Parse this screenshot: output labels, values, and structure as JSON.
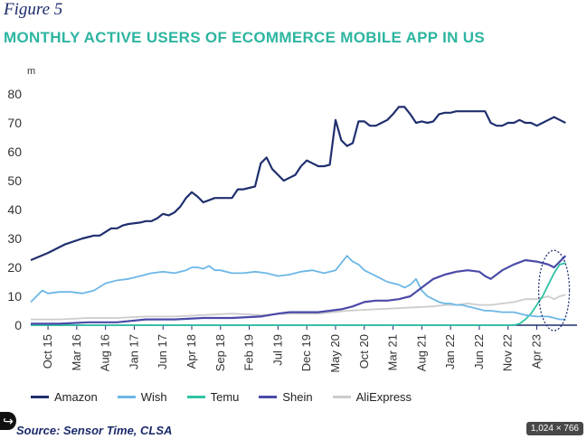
{
  "figure_label": "Figure 5",
  "title": "MONTHLY ACTIVE USERS OF ECOMMERCE MOBILE APP IN US",
  "source": "Source: Sensor Time, CLSA",
  "dims_badge": "1,024 × 766",
  "colors": {
    "Amazon": "#1f2f6e",
    "Wish": "#6cb7e6",
    "Temu": "#2ec4a4",
    "Shein": "#4a4aa8",
    "AliExpress": "#cccccc"
  },
  "chart_data": {
    "type": "line",
    "title": "MONTHLY ACTIVE USERS OF ECOMMERCE MOBILE APP IN US",
    "unit_label": "m",
    "xlabel": "",
    "ylabel": "m",
    "ylim": [
      0,
      80
    ],
    "yticks": [
      0,
      10,
      20,
      30,
      40,
      50,
      60,
      70,
      80
    ],
    "x_range": [
      0,
      95
    ],
    "x_ticks": [
      {
        "x": 3,
        "label": "Oct 15"
      },
      {
        "x": 8,
        "label": "Mar 16"
      },
      {
        "x": 13,
        "label": "Aug 16"
      },
      {
        "x": 18,
        "label": "Jan 17"
      },
      {
        "x": 23,
        "label": "Jun 17"
      },
      {
        "x": 28,
        "label": "Apr 18"
      },
      {
        "x": 33,
        "label": "Sep 18"
      },
      {
        "x": 38,
        "label": "Feb 19"
      },
      {
        "x": 43,
        "label": "Jul 19"
      },
      {
        "x": 48,
        "label": "Dec 19"
      },
      {
        "x": 53,
        "label": "May 20"
      },
      {
        "x": 58,
        "label": "Oct 20"
      },
      {
        "x": 63,
        "label": "Mar 21"
      },
      {
        "x": 68,
        "label": "Aug 21"
      },
      {
        "x": 73,
        "label": "Jan 22"
      },
      {
        "x": 78,
        "label": "Jun 22"
      },
      {
        "x": 83,
        "label": "Nov 22"
      },
      {
        "x": 88,
        "label": "Apr 23"
      }
    ],
    "grid": false,
    "legend_position": "bottom",
    "annotation": "dashed-ellipse-highlight",
    "series": [
      {
        "name": "Amazon",
        "x": [
          0,
          3,
          6,
          9,
          11,
          12,
          14,
          15,
          16,
          17,
          19,
          20,
          21,
          22,
          23,
          24,
          25,
          26,
          27,
          28,
          29,
          30,
          32,
          33,
          34,
          35,
          36,
          37,
          38,
          39,
          40,
          41,
          42,
          43,
          44,
          45,
          46,
          47,
          48,
          49,
          50,
          51,
          52,
          53,
          54,
          55,
          56,
          57,
          58,
          59,
          60,
          61,
          62,
          63,
          64,
          65,
          66,
          67,
          68,
          69,
          70,
          71,
          72,
          73,
          74,
          75,
          76,
          77,
          78,
          79,
          80,
          81,
          82,
          83,
          84,
          85,
          86,
          87,
          88,
          89,
          90,
          91,
          92,
          93
        ],
        "y": [
          22.5,
          25,
          28,
          30,
          31,
          31,
          33.5,
          33.5,
          34.5,
          35,
          35.5,
          36,
          36,
          37,
          38.5,
          38,
          39,
          41,
          44,
          46,
          44.5,
          42.5,
          44,
          44,
          44,
          44,
          47,
          47,
          47.5,
          48,
          56,
          58,
          54,
          52,
          50,
          51,
          52,
          55,
          57,
          56,
          55,
          55,
          55.5,
          71,
          64,
          62,
          63,
          70.5,
          70.5,
          69,
          69,
          70,
          71,
          73,
          75.5,
          75.5,
          73,
          70,
          70.5,
          70,
          70.5,
          73,
          73.5,
          73.5,
          74,
          74,
          74,
          74,
          74,
          74,
          70,
          69,
          69,
          70,
          70,
          71,
          70,
          70,
          69,
          70,
          71,
          72,
          71,
          70
        ]
      },
      {
        "name": "Wish",
        "x": [
          0,
          2,
          3,
          5,
          7,
          9,
          11,
          13,
          15,
          17,
          19,
          21,
          23,
          25,
          27,
          28,
          29,
          30,
          31,
          32,
          33,
          35,
          37,
          39,
          41,
          43,
          45,
          47,
          49,
          51,
          53,
          55,
          56,
          57,
          58,
          60,
          62,
          64,
          65,
          66,
          67,
          68,
          69,
          70,
          71,
          72,
          73,
          74,
          75,
          76,
          77,
          78,
          79,
          80,
          82,
          84,
          86,
          88,
          90,
          91,
          92,
          93
        ],
        "y": [
          8,
          12,
          11,
          11.5,
          11.5,
          11,
          12,
          14.5,
          15.5,
          16,
          17,
          18,
          18.5,
          18,
          19,
          20,
          20,
          19.5,
          20.5,
          19,
          19,
          18,
          18,
          18.5,
          18,
          17,
          17.5,
          18.5,
          19,
          18,
          19,
          24,
          22,
          21,
          19,
          17,
          15,
          14,
          13,
          14,
          16,
          12,
          10,
          9,
          8,
          7.5,
          7.5,
          7,
          7,
          6.5,
          6,
          5.5,
          5,
          5,
          4.5,
          4.5,
          3.5,
          3,
          3,
          2.5,
          2,
          2
        ]
      },
      {
        "name": "Temu",
        "x": [
          0,
          10,
          20,
          30,
          40,
          50,
          60,
          70,
          80,
          84,
          85,
          86,
          87,
          88,
          89,
          90,
          91,
          92,
          93
        ],
        "y": [
          0,
          0,
          0,
          0,
          0,
          0,
          0,
          0,
          0,
          0,
          0.5,
          2,
          4,
          7,
          10,
          14,
          18,
          21,
          21.5
        ]
      },
      {
        "name": "Shein",
        "x": [
          0,
          3,
          5,
          10,
          15,
          20,
          25,
          30,
          35,
          40,
          43,
          45,
          48,
          50,
          52,
          54,
          56,
          58,
          60,
          62,
          64,
          66,
          68,
          70,
          72,
          74,
          76,
          78,
          79,
          80,
          82,
          84,
          86,
          88,
          90,
          91,
          92,
          93
        ],
        "y": [
          0.5,
          0.5,
          0.5,
          1,
          1,
          2,
          2,
          2.5,
          2.5,
          3,
          4,
          4.5,
          4.5,
          4.5,
          5,
          5.5,
          6.5,
          8,
          8.5,
          8.5,
          9,
          10,
          13,
          16,
          17.5,
          18.5,
          19,
          18.5,
          17,
          16,
          19,
          21,
          22.5,
          22,
          21,
          20,
          22,
          24
        ]
      },
      {
        "name": "AliExpress",
        "x": [
          0,
          5,
          10,
          15,
          20,
          25,
          30,
          35,
          40,
          45,
          50,
          55,
          60,
          65,
          70,
          72,
          74,
          76,
          78,
          80,
          82,
          84,
          86,
          88,
          89,
          90,
          91,
          92,
          93
        ],
        "y": [
          2,
          2,
          2.5,
          2.5,
          3,
          3,
          3.5,
          4,
          3.5,
          4,
          4,
          5,
          5.5,
          6,
          6.5,
          7,
          7,
          7.5,
          7,
          7,
          7.5,
          8,
          9,
          9,
          9.5,
          10,
          9,
          10,
          10.5
        ]
      }
    ]
  },
  "legend": [
    {
      "name": "Amazon"
    },
    {
      "name": "Wish"
    },
    {
      "name": "Temu"
    },
    {
      "name": "Shein"
    },
    {
      "name": "AliExpress"
    }
  ]
}
